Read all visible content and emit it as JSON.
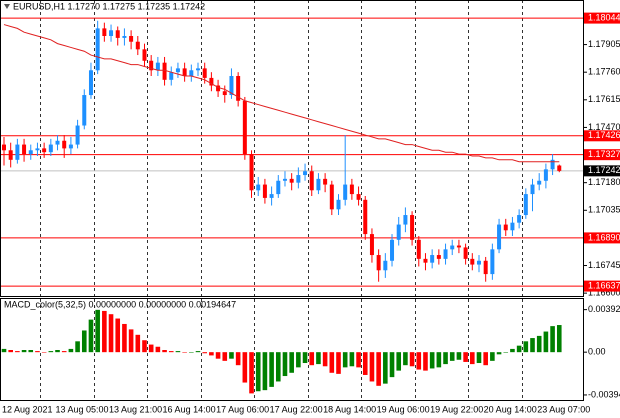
{
  "chart_data": [
    {
      "type": "candlestick",
      "title": "EURUSD,H1  1.17270 1.17275 1.17235 1.17242",
      "categories": [
        "12 Aug 2021",
        null,
        null,
        null,
        null,
        null,
        null,
        null,
        "13 Aug 05:00",
        null,
        null,
        null,
        null,
        null,
        null,
        null,
        "13 Aug 21:00",
        null,
        null,
        null,
        null,
        null,
        null,
        null,
        "16 Aug 14:00",
        null,
        null,
        null,
        null,
        null,
        null,
        null,
        "17 Aug 06:00",
        null,
        null,
        null,
        null,
        null,
        null,
        null,
        "17 Aug 22:00",
        null,
        null,
        null,
        null,
        null,
        null,
        null,
        "18 Aug 14:00",
        null,
        null,
        null,
        null,
        null,
        null,
        null,
        "19 Aug 06:00",
        null,
        null,
        null,
        null,
        null,
        null,
        null,
        "19 Aug 22:00",
        null,
        null,
        null,
        null,
        null,
        null,
        null,
        "20 Aug 14:00",
        null,
        null,
        null,
        null,
        null,
        null,
        null,
        "23 Aug 07:00",
        null,
        null,
        null
      ],
      "open": [
        1.1738,
        1.1735,
        1.173,
        1.1738,
        1.1733,
        1.1735,
        1.1736,
        1.1734,
        1.1738,
        1.174,
        1.1736,
        1.1738,
        1.1748,
        1.1764,
        1.1777,
        1.1799,
        1.1795,
        1.1798,
        1.1794,
        1.1795,
        1.1792,
        1.1788,
        1.1782,
        1.1777,
        1.1781,
        1.1772,
        1.1776,
        1.1778,
        1.1774,
        1.1777,
        1.1778,
        1.1773,
        1.1769,
        1.1766,
        1.1764,
        1.1774,
        1.1761,
        1.1733,
        1.1714,
        1.1717,
        1.171,
        1.1712,
        1.1719,
        1.172,
        1.1718,
        1.1722,
        1.1724,
        1.1714,
        1.172,
        1.1717,
        1.1704,
        1.1709,
        1.1717,
        1.1712,
        1.1709,
        1.1691,
        1.168,
        1.1672,
        1.1677,
        1.1688,
        1.1696,
        1.1701,
        1.1688,
        1.1678,
        1.1676,
        1.168,
        1.1678,
        1.1683,
        1.1685,
        1.1684,
        1.1678,
        1.1675,
        1.1677,
        1.167,
        1.1683,
        1.1696,
        1.1693,
        1.1697,
        1.1701,
        1.1712,
        1.1717,
        1.1719,
        1.1725,
        1.1727
      ],
      "high": [
        1.1742,
        1.1739,
        1.1741,
        1.1741,
        1.1738,
        1.1739,
        1.1739,
        1.1741,
        1.1743,
        1.1743,
        1.1742,
        1.1751,
        1.1767,
        1.1781,
        1.1803,
        1.1802,
        1.1801,
        1.18,
        1.1799,
        1.1798,
        1.1795,
        1.1791,
        1.1785,
        1.1784,
        1.1784,
        1.1779,
        1.1781,
        1.1781,
        1.178,
        1.1781,
        1.1781,
        1.1776,
        1.1772,
        1.1769,
        1.1778,
        1.1776,
        1.1763,
        1.1735,
        1.1721,
        1.172,
        1.1716,
        1.1722,
        1.1724,
        1.1723,
        1.1726,
        1.1728,
        1.1727,
        1.1723,
        1.1723,
        1.1719,
        1.1712,
        1.1743,
        1.172,
        1.1716,
        1.1711,
        1.1694,
        1.1683,
        1.1681,
        1.1691,
        1.17,
        1.1705,
        1.1703,
        1.169,
        1.1681,
        1.1683,
        1.1683,
        1.1686,
        1.1688,
        1.1688,
        1.1686,
        1.1681,
        1.168,
        1.1679,
        1.1686,
        1.1699,
        1.1699,
        1.17,
        1.1704,
        1.1715,
        1.172,
        1.1723,
        1.1728,
        1.1733,
        1.17275
      ],
      "low": [
        1.1727,
        1.1726,
        1.1728,
        1.1729,
        1.173,
        1.1732,
        1.1731,
        1.1732,
        1.1735,
        1.1731,
        1.1733,
        1.1736,
        1.1746,
        1.1762,
        1.1775,
        1.1792,
        1.1792,
        1.179,
        1.179,
        1.1788,
        1.1785,
        1.1779,
        1.1774,
        1.1774,
        1.1769,
        1.1769,
        1.1773,
        1.1771,
        1.1771,
        1.1774,
        1.177,
        1.1766,
        1.1763,
        1.176,
        1.1762,
        1.1758,
        1.173,
        1.171,
        1.1711,
        1.1707,
        1.1706,
        1.171,
        1.1716,
        1.1714,
        1.1715,
        1.1719,
        1.1711,
        1.1712,
        1.1713,
        1.1701,
        1.1701,
        1.1706,
        1.1709,
        1.1706,
        1.1688,
        1.1676,
        1.1666,
        1.1668,
        1.1674,
        1.1685,
        1.1692,
        1.1685,
        1.1674,
        1.1672,
        1.1673,
        1.1675,
        1.1675,
        1.168,
        1.1681,
        1.1675,
        1.1672,
        1.1671,
        1.1666,
        1.1667,
        1.1681,
        1.169,
        1.169,
        1.1694,
        1.1699,
        1.1703,
        1.1714,
        1.1715,
        1.1722,
        1.17235
      ],
      "close": [
        1.1735,
        1.173,
        1.1738,
        1.1733,
        1.1735,
        1.1736,
        1.1734,
        1.1738,
        1.174,
        1.1736,
        1.1738,
        1.1748,
        1.1764,
        1.1777,
        1.1799,
        1.1795,
        1.1798,
        1.1794,
        1.1795,
        1.1792,
        1.1788,
        1.1782,
        1.1777,
        1.1781,
        1.1772,
        1.1776,
        1.1778,
        1.1774,
        1.1777,
        1.1778,
        1.1773,
        1.1769,
        1.1766,
        1.1764,
        1.1774,
        1.1761,
        1.1733,
        1.1714,
        1.1717,
        1.171,
        1.1712,
        1.1719,
        1.172,
        1.1718,
        1.1722,
        1.1724,
        1.1714,
        1.172,
        1.1717,
        1.1704,
        1.1709,
        1.1717,
        1.1712,
        1.1709,
        1.1691,
        1.168,
        1.1672,
        1.1677,
        1.1688,
        1.1696,
        1.1701,
        1.1688,
        1.1678,
        1.1676,
        1.168,
        1.1678,
        1.1683,
        1.1685,
        1.1684,
        1.1678,
        1.1675,
        1.1677,
        1.167,
        1.1683,
        1.1696,
        1.1693,
        1.1697,
        1.1701,
        1.1712,
        1.1717,
        1.1719,
        1.1725,
        1.173,
        1.17242
      ],
      "up_color": "#1e90ff",
      "down_color": "#ff0000",
      "ma": {
        "color": "#e02020",
        "values": [
          1.1801,
          1.18,
          1.1799,
          1.1797,
          1.1796,
          1.1795,
          1.1794,
          1.1793,
          1.1791,
          1.179,
          1.1789,
          1.1788,
          1.1787,
          1.1785,
          1.1784,
          1.1783,
          1.1783,
          1.1782,
          1.1781,
          1.178,
          1.178,
          1.1779,
          1.1778,
          1.1777,
          1.1777,
          1.1776,
          1.1775,
          1.1774,
          1.1774,
          1.1773,
          1.1772,
          1.177,
          1.1768,
          1.1767,
          1.1765,
          1.1763,
          1.1761,
          1.176,
          1.1759,
          1.1758,
          1.1757,
          1.1756,
          1.1755,
          1.1754,
          1.1753,
          1.1752,
          1.1751,
          1.175,
          1.1749,
          1.1748,
          1.1747,
          1.1746,
          1.1745,
          1.1744,
          1.1743,
          1.1742,
          1.1741,
          1.1741,
          1.174,
          1.1739,
          1.1738,
          1.1738,
          1.1737,
          1.1736,
          1.1735,
          1.1735,
          1.1734,
          1.1734,
          1.1733,
          1.1733,
          1.1732,
          1.1732,
          1.1731,
          1.1731,
          1.173,
          1.173,
          1.173,
          1.1729,
          1.1729,
          1.1729,
          1.1729,
          1.1729,
          1.1729,
          1.1729
        ]
      },
      "levels": [
        {
          "value": 1.18044,
          "label": "1.18044"
        },
        {
          "value": 1.17426,
          "label": "1.17426"
        },
        {
          "value": 1.17327,
          "label": "1.17327"
        },
        {
          "value": 1.1689,
          "label": "1.16890"
        },
        {
          "value": 1.16637,
          "label": "1.16637"
        }
      ],
      "level_color": "#ff0000",
      "last_price": {
        "value": 1.17242,
        "label": "1.17242"
      },
      "ylim": [
        1.16585,
        1.18139
      ],
      "yticks": [
        1.17905,
        {
          "value": 1.1776,
          "label": "1.17760"
        },
        1.17615,
        {
          "value": 1.1747,
          "label": "1.17470"
        },
        {
          "value": 1.1718,
          "label": "1.17180"
        },
        1.17035,
        1.16745,
        {
          "value": 1.166,
          "label": "1.16600"
        }
      ],
      "grid": true
    },
    {
      "type": "bar",
      "title": "MACD_color(5,32,5) 0.00000000 0.00000000 0.00194647",
      "values": [
        0.0003,
        0.0002,
        0.0001,
        0.0002,
        0.0002,
        0.0001,
        0.0,
        0.0001,
        0.0002,
        0.0001,
        0.0003,
        0.001,
        0.002,
        0.003,
        0.0039,
        0.0038,
        0.0035,
        0.0031,
        0.0026,
        0.0021,
        0.0016,
        0.0011,
        0.0007,
        0.0005,
        0.0002,
        0.0001,
        0.0001,
        0.0,
        0.0,
        0.0001,
        -0.0001,
        -0.0003,
        -0.0006,
        -0.0008,
        -0.0006,
        -0.0012,
        -0.0028,
        -0.0038,
        -0.0036,
        -0.0035,
        -0.0032,
        -0.0027,
        -0.0022,
        -0.0019,
        -0.0014,
        -0.001,
        -0.0012,
        -0.0011,
        -0.0013,
        -0.0019,
        -0.002,
        -0.0014,
        -0.0013,
        -0.0014,
        -0.0021,
        -0.0027,
        -0.0031,
        -0.0029,
        -0.0023,
        -0.0017,
        -0.0012,
        -0.0013,
        -0.0016,
        -0.0017,
        -0.0015,
        -0.0014,
        -0.0011,
        -0.0008,
        -0.0007,
        -0.0009,
        -0.0011,
        -0.001,
        -0.0012,
        -0.0008,
        -0.0002,
        0.0,
        0.0003,
        0.0006,
        0.001,
        0.0013,
        0.0015,
        0.0019,
        0.0024,
        0.0025
      ],
      "up_color": "#008000",
      "down_color": "#ff0000",
      "ylim": [
        -0.0045,
        0.0049
      ],
      "yticks": [
        0.00392016,
        {
          "value": 0,
          "label": "0.00"
        },
        -0.003943
      ]
    }
  ]
}
